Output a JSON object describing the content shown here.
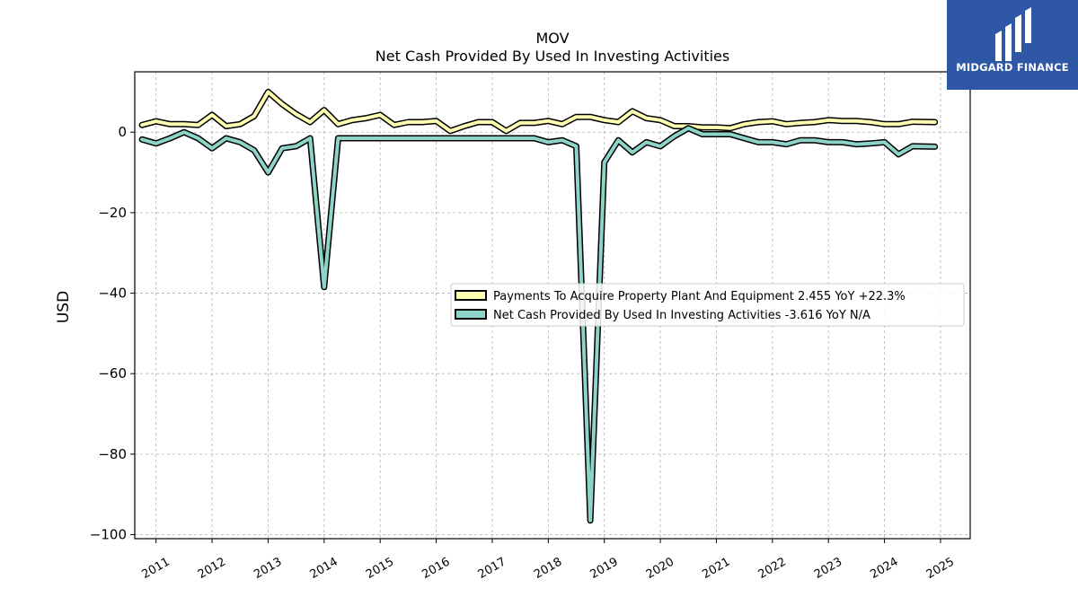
{
  "brand": {
    "name": "MIDGARD FINANCE",
    "background": "#2e58a6"
  },
  "chart_data": {
    "type": "line",
    "title": "MOV",
    "subtitle": "Net Cash Provided By Used In Investing Activities",
    "xlabel": "",
    "ylabel": "USD",
    "xlim": [
      2010.62,
      2025.53
    ],
    "ylim": [
      -101,
      15
    ],
    "xticks": [
      "2011",
      "2012",
      "2013",
      "2014",
      "2015",
      "2016",
      "2017",
      "2018",
      "2019",
      "2020",
      "2021",
      "2022",
      "2023",
      "2024",
      "2025"
    ],
    "yticks": [
      {
        "value": 0,
        "label": "0"
      },
      {
        "value": -20,
        "label": "−20"
      },
      {
        "value": -40,
        "label": "−40"
      },
      {
        "value": -60,
        "label": "−60"
      },
      {
        "value": -80,
        "label": "−80"
      },
      {
        "value": -100,
        "label": "−100"
      }
    ],
    "grid": true,
    "legend_position": "center-right",
    "series": [
      {
        "name": "Payments To Acquire Property Plant And Equipment",
        "legend_label": "Payments To Acquire Property Plant And Equipment  2.455 YoY +22.3%",
        "color": "#ffffb3",
        "points": [
          [
            2010.75,
            1.8
          ],
          [
            2011.0,
            2.7
          ],
          [
            2011.25,
            2.0
          ],
          [
            2011.5,
            2.0
          ],
          [
            2011.75,
            1.8
          ],
          [
            2012.0,
            4.3
          ],
          [
            2012.25,
            1.5
          ],
          [
            2012.5,
            2.0
          ],
          [
            2012.75,
            4.0
          ],
          [
            2013.0,
            10.0
          ],
          [
            2013.25,
            7.0
          ],
          [
            2013.5,
            4.5
          ],
          [
            2013.75,
            2.5
          ],
          [
            2014.0,
            5.5
          ],
          [
            2014.25,
            2.0
          ],
          [
            2014.5,
            3.0
          ],
          [
            2014.75,
            3.5
          ],
          [
            2015.0,
            4.3
          ],
          [
            2015.25,
            1.8
          ],
          [
            2015.5,
            2.5
          ],
          [
            2015.75,
            2.5
          ],
          [
            2016.0,
            2.8
          ],
          [
            2016.25,
            0.3
          ],
          [
            2016.5,
            1.5
          ],
          [
            2016.75,
            2.5
          ],
          [
            2017.0,
            2.5
          ],
          [
            2017.25,
            0.3
          ],
          [
            2017.5,
            2.3
          ],
          [
            2017.75,
            2.3
          ],
          [
            2018.0,
            2.8
          ],
          [
            2018.25,
            2.0
          ],
          [
            2018.5,
            3.8
          ],
          [
            2018.75,
            3.8
          ],
          [
            2019.0,
            3.0
          ],
          [
            2019.25,
            2.5
          ],
          [
            2019.5,
            5.2
          ],
          [
            2019.75,
            3.5
          ],
          [
            2020.0,
            3.0
          ],
          [
            2020.25,
            1.5
          ],
          [
            2020.5,
            1.5
          ],
          [
            2020.75,
            1.2
          ],
          [
            2021.0,
            1.2
          ],
          [
            2021.25,
            1.0
          ],
          [
            2021.5,
            2.0
          ],
          [
            2021.75,
            2.5
          ],
          [
            2022.0,
            2.7
          ],
          [
            2022.25,
            2.0
          ],
          [
            2022.5,
            2.3
          ],
          [
            2022.75,
            2.5
          ],
          [
            2023.0,
            3.0
          ],
          [
            2023.25,
            2.8
          ],
          [
            2023.5,
            2.8
          ],
          [
            2023.75,
            2.5
          ],
          [
            2024.0,
            2.0
          ],
          [
            2024.25,
            2.0
          ],
          [
            2024.5,
            2.6
          ],
          [
            2024.9,
            2.5
          ]
        ]
      },
      {
        "name": "Net Cash Provided By Used In Investing Activities",
        "legend_label": "Net Cash Provided By Used In Investing Activities  -3.616 YoY N/A",
        "color": "#8dd3c7",
        "points": [
          [
            2010.75,
            -1.8
          ],
          [
            2011.0,
            -2.8
          ],
          [
            2011.25,
            -1.5
          ],
          [
            2011.5,
            0.0
          ],
          [
            2011.75,
            -1.5
          ],
          [
            2012.0,
            -4.0
          ],
          [
            2012.25,
            -1.5
          ],
          [
            2012.5,
            -2.5
          ],
          [
            2012.75,
            -4.5
          ],
          [
            2013.0,
            -10.0
          ],
          [
            2013.25,
            -4.0
          ],
          [
            2013.5,
            -3.5
          ],
          [
            2013.75,
            -1.5
          ],
          [
            2014.0,
            -38.5
          ],
          [
            2014.25,
            -1.5
          ],
          [
            2014.5,
            -1.5
          ],
          [
            2014.75,
            -1.5
          ],
          [
            2015.0,
            -1.5
          ],
          [
            2015.25,
            -1.5
          ],
          [
            2015.5,
            -1.5
          ],
          [
            2015.75,
            -1.5
          ],
          [
            2016.0,
            -1.5
          ],
          [
            2016.25,
            -1.5
          ],
          [
            2016.5,
            -1.5
          ],
          [
            2016.75,
            -1.5
          ],
          [
            2017.0,
            -1.5
          ],
          [
            2017.25,
            -1.5
          ],
          [
            2017.5,
            -1.5
          ],
          [
            2017.75,
            -1.5
          ],
          [
            2018.0,
            -2.5
          ],
          [
            2018.25,
            -2.0
          ],
          [
            2018.5,
            -3.5
          ],
          [
            2018.75,
            -96.5
          ],
          [
            2019.0,
            -7.5
          ],
          [
            2019.25,
            -2.0
          ],
          [
            2019.5,
            -5.0
          ],
          [
            2019.75,
            -2.5
          ],
          [
            2020.0,
            -3.5
          ],
          [
            2020.25,
            -1.0
          ],
          [
            2020.5,
            1.0
          ],
          [
            2020.75,
            -0.5
          ],
          [
            2021.0,
            -0.5
          ],
          [
            2021.25,
            -0.5
          ],
          [
            2021.5,
            -1.5
          ],
          [
            2021.75,
            -2.5
          ],
          [
            2022.0,
            -2.5
          ],
          [
            2022.25,
            -3.0
          ],
          [
            2022.5,
            -2.0
          ],
          [
            2022.75,
            -2.0
          ],
          [
            2023.0,
            -2.5
          ],
          [
            2023.25,
            -2.5
          ],
          [
            2023.5,
            -3.0
          ],
          [
            2023.75,
            -2.8
          ],
          [
            2024.0,
            -2.5
          ],
          [
            2024.25,
            -5.5
          ],
          [
            2024.5,
            -3.5
          ],
          [
            2024.9,
            -3.6
          ]
        ]
      }
    ]
  }
}
